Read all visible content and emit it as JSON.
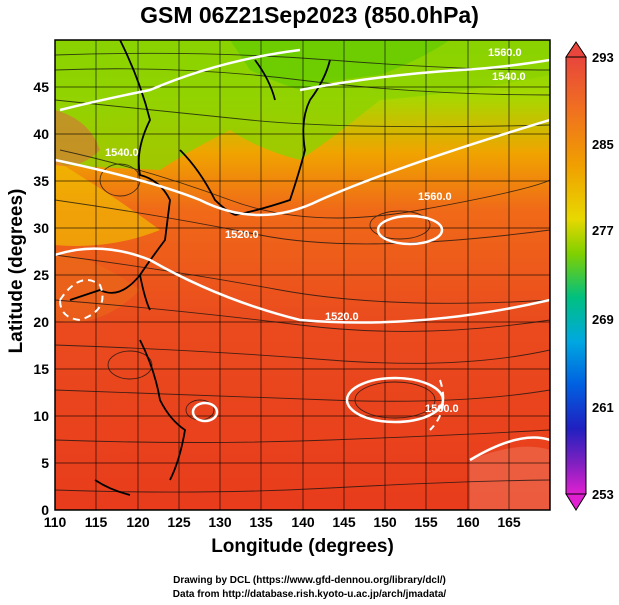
{
  "title": "GSM 06Z21Sep2023 (850.0hPa)",
  "x_axis": {
    "label": "Longitude (degrees)",
    "ticks": [
      "110",
      "115",
      "120",
      "125",
      "130",
      "135",
      "140",
      "145",
      "150",
      "155",
      "160",
      "165"
    ]
  },
  "y_axis": {
    "label": "Latitude  (degrees)",
    "ticks": [
      "0",
      "5",
      "10",
      "15",
      "20",
      "25",
      "30",
      "35",
      "40",
      "45"
    ]
  },
  "colorbar": {
    "labels": [
      "293",
      "285",
      "277",
      "269",
      "261",
      "253"
    ]
  },
  "contour_labels": [
    "1560.0",
    "1540.0",
    "1520.0",
    "1520.0",
    "1560.0",
    "1560.0",
    "1540.0"
  ],
  "credits": {
    "line1": "Drawing by DCL (https://www.gfd-dennou.org/library/dcl/)",
    "line2": "Data from http://database.rish.kyoto-u.ac.jp/arch/jmadata/"
  },
  "map_extent": {
    "lon": [
      110,
      170
    ],
    "lat": [
      0,
      50
    ]
  },
  "colorbar_range": [
    253,
    293
  ]
}
